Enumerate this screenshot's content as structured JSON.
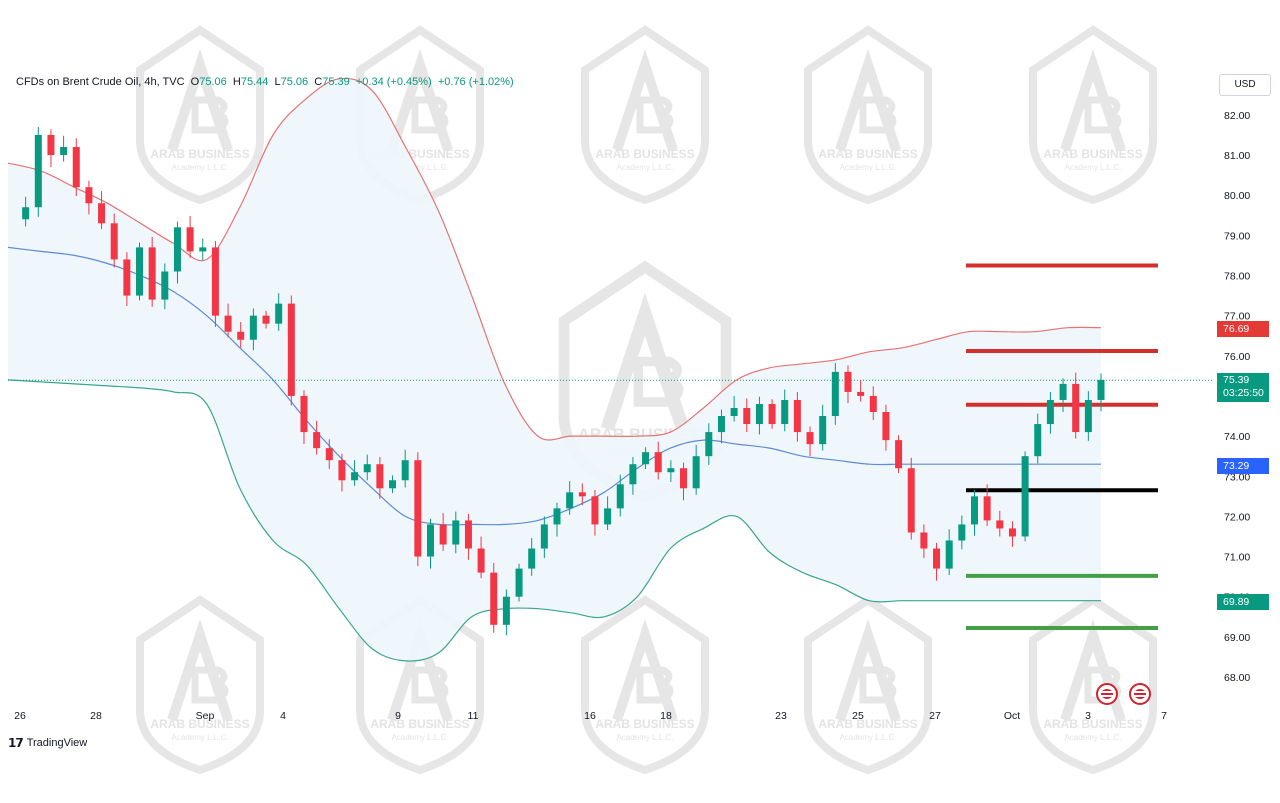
{
  "header": {
    "symbol": "CFDs on Brent Crude Oil, 4h, TVC",
    "o_label": "O",
    "o_value": "75.06",
    "h_label": "H",
    "h_value": "75.44",
    "l_label": "L",
    "l_value": "75.06",
    "c_label": "C",
    "c_value": "75.39",
    "change": "+0.34 (+0.45%)",
    "change2": "+0.76 (+1.02%)"
  },
  "currency": "USD",
  "branding": "TradingView",
  "watermark_text": [
    "ARAB BUSINESS",
    "Academy L.L.C."
  ],
  "price_tags": {
    "upper_band": "76.69",
    "last_price": "75.39",
    "countdown": "03:25:50",
    "middle_band": "73.29",
    "lower_band": "69.89"
  },
  "colors": {
    "up": "#089981",
    "down": "#f23645",
    "upper_band": "#e57373",
    "middle_band": "#5b8bd6",
    "lower_band": "#3aa58c",
    "band_fill": "#eef6fc",
    "resistance": "#d32f2f",
    "support": "#43a047",
    "pivot": "#000000"
  },
  "chart_data": {
    "type": "candlestick",
    "title": "CFDs on Brent Crude Oil, 4h, TVC",
    "y_ticks": [
      "68.00",
      "69.00",
      "70.00",
      "71.00",
      "72.00",
      "73.00",
      "74.00",
      "75.00",
      "76.00",
      "77.00",
      "78.00",
      "79.00",
      "80.00",
      "81.00",
      "82.00"
    ],
    "ylim": [
      67.4,
      83.6
    ],
    "x_ticks": [
      "26",
      "28",
      "Sep",
      "4",
      "9",
      "11",
      "16",
      "18",
      "23",
      "25",
      "27",
      "Oct",
      "3",
      "7"
    ],
    "grid": false,
    "indicator": "Bollinger Bands",
    "close_path": [
      79.4,
      79.7,
      81.5,
      81.0,
      81.2,
      80.2,
      79.8,
      79.3,
      78.4,
      77.5,
      78.7,
      77.4,
      78.1,
      79.2,
      78.6,
      78.7,
      77.0,
      76.6,
      76.4,
      77.0,
      76.8,
      77.3,
      75.0,
      74.1,
      73.7,
      73.4,
      72.9,
      73.1,
      73.3,
      72.7,
      72.9,
      73.4,
      71.0,
      71.8,
      71.3,
      71.9,
      71.2,
      70.6,
      69.3,
      70.0,
      70.7,
      71.2,
      71.8,
      72.2,
      72.6,
      72.5,
      71.8,
      72.2,
      72.8,
      73.3,
      73.6,
      73.1,
      73.2,
      72.7,
      73.5,
      74.1,
      74.5,
      74.7,
      74.3,
      74.8,
      74.3,
      74.9,
      74.1,
      73.8,
      74.5,
      75.6,
      75.1,
      75.0,
      74.6,
      73.9,
      73.2,
      71.6,
      71.2,
      70.7,
      71.4,
      71.8,
      72.5,
      71.9,
      71.7,
      71.5,
      73.5,
      74.3,
      74.9,
      75.3,
      74.1,
      74.9,
      75.4
    ],
    "upper_band": [
      80.8,
      80.6,
      80.2,
      79.8,
      79.3,
      78.8,
      78.4,
      79.7,
      81.5,
      82.4,
      82.9,
      82.6,
      81.2,
      79.6,
      77.5,
      75.3,
      74.0,
      74.0,
      74.0,
      74.0,
      74.1,
      74.7,
      75.4,
      75.7,
      75.8,
      75.9,
      76.1,
      76.2,
      76.4,
      76.6,
      76.6,
      76.6,
      76.7,
      76.7
    ],
    "middle_band": [
      78.7,
      78.6,
      78.5,
      78.3,
      78.0,
      77.6,
      77.0,
      76.2,
      75.4,
      74.4,
      73.5,
      72.7,
      72.0,
      71.8,
      71.8,
      71.8,
      71.9,
      72.2,
      72.6,
      73.2,
      73.7,
      73.9,
      73.8,
      73.7,
      73.5,
      73.4,
      73.3,
      73.3,
      73.3,
      73.3,
      73.3,
      73.3,
      73.3,
      73.3
    ],
    "lower_band": [
      75.4,
      75.35,
      75.3,
      75.25,
      75.2,
      75.1,
      74.8,
      72.7,
      71.4,
      70.8,
      69.7,
      68.7,
      68.4,
      68.6,
      69.5,
      69.7,
      69.7,
      69.6,
      69.5,
      70.0,
      71.2,
      71.7,
      72.0,
      71.1,
      70.6,
      70.3,
      69.9,
      69.9,
      69.9,
      69.9,
      69.9,
      69.9,
      69.9,
      69.9
    ],
    "horizontal_levels": [
      {
        "price": 78.25,
        "color": "resistance"
      },
      {
        "price": 76.12,
        "color": "resistance"
      },
      {
        "price": 74.78,
        "color": "resistance"
      },
      {
        "price": 72.65,
        "color": "pivot"
      },
      {
        "price": 70.52,
        "color": "support"
      },
      {
        "price": 69.22,
        "color": "support"
      }
    ],
    "last_price": 75.39
  }
}
